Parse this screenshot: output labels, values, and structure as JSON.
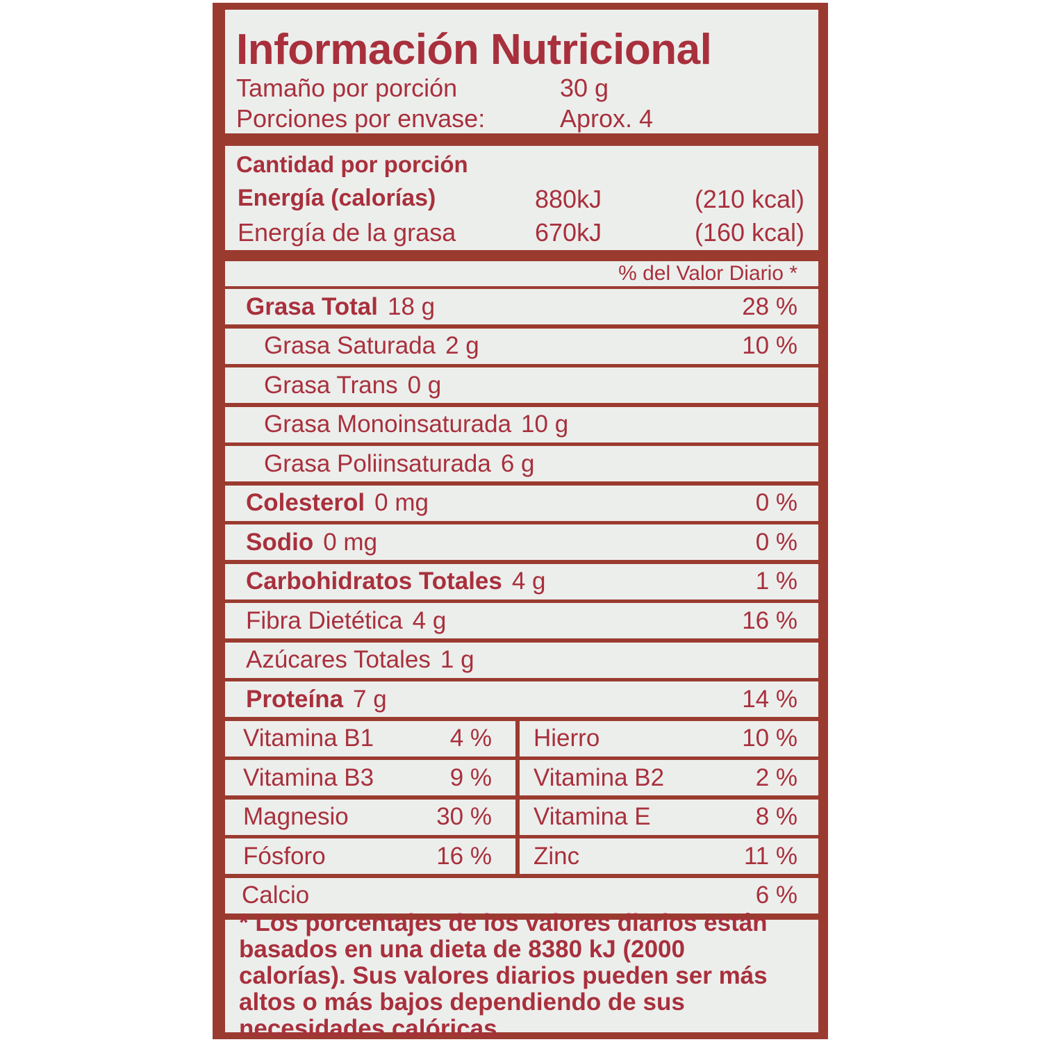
{
  "title": "Información Nutricional",
  "serving": {
    "size_label": "Tamaño por porción",
    "size_value": "30 g",
    "servings_label": "Porciones por envase:",
    "servings_value": "Aprox. 4"
  },
  "energy": {
    "header": "Cantidad por porción",
    "rows": [
      {
        "label": "Energía (calorías)",
        "kj": "880kJ",
        "kcal": "(210 kcal)"
      },
      {
        "label": "Energía de la grasa",
        "kj": "670kJ",
        "kcal": "(160 kcal)"
      }
    ]
  },
  "dv_header": "% del Valor Diario *",
  "nutrients": [
    {
      "label": "Grasa Total",
      "amount": "18 g",
      "dv": "28 %",
      "bold": true,
      "indent": false
    },
    {
      "label": "Grasa Saturada",
      "amount": "2 g",
      "dv": "10 %",
      "bold": false,
      "indent": true
    },
    {
      "label": "Grasa Trans",
      "amount": "0 g",
      "dv": "",
      "bold": false,
      "indent": true
    },
    {
      "label": "Grasa Monoinsaturada",
      "amount": "10 g",
      "dv": "",
      "bold": false,
      "indent": true
    },
    {
      "label": "Grasa Poliinsaturada",
      "amount": "6 g",
      "dv": "",
      "bold": false,
      "indent": true
    },
    {
      "label": "Colesterol",
      "amount": "0 mg",
      "dv": "0 %",
      "bold": true,
      "indent": false
    },
    {
      "label": "Sodio",
      "amount": "0 mg",
      "dv": "0 %",
      "bold": true,
      "indent": false
    },
    {
      "label": "Carbohidratos Totales",
      "amount": "4 g",
      "dv": "1 %",
      "bold": true,
      "indent": false
    },
    {
      "label": "Fibra Dietética",
      "amount": "4 g",
      "dv": "16 %",
      "bold": false,
      "indent": false
    },
    {
      "label": "Azúcares Totales",
      "amount": "1 g",
      "dv": "",
      "bold": false,
      "indent": false
    },
    {
      "label": "Proteína",
      "amount": "7 g",
      "dv": "14 %",
      "bold": true,
      "indent": false
    }
  ],
  "vitamins": [
    [
      {
        "label": "Vitamina B1",
        "dv": "4 %"
      },
      {
        "label": "Hierro",
        "dv": "10 %"
      }
    ],
    [
      {
        "label": "Vitamina B3",
        "dv": "9 %"
      },
      {
        "label": "Vitamina B2",
        "dv": "2 %"
      }
    ],
    [
      {
        "label": "Magnesio",
        "dv": "30 %"
      },
      {
        "label": "Vitamina E",
        "dv": "8 %"
      }
    ],
    [
      {
        "label": "Fósforo",
        "dv": "16 %"
      },
      {
        "label": "Zinc",
        "dv": "11 %"
      }
    ]
  ],
  "calcium": {
    "label": "Calcio",
    "dv": "6 %"
  },
  "footnote": "* Los porcentajes de los valores diarios están basados en una dieta de 8380 kJ (2000 calorías). Sus valores diarios pueden ser más altos o más bajos dependiendo de sus necesidades calóricas.",
  "colors": {
    "text": "#a8303c",
    "border": "#9b3b30",
    "panel": "#eceeec"
  }
}
